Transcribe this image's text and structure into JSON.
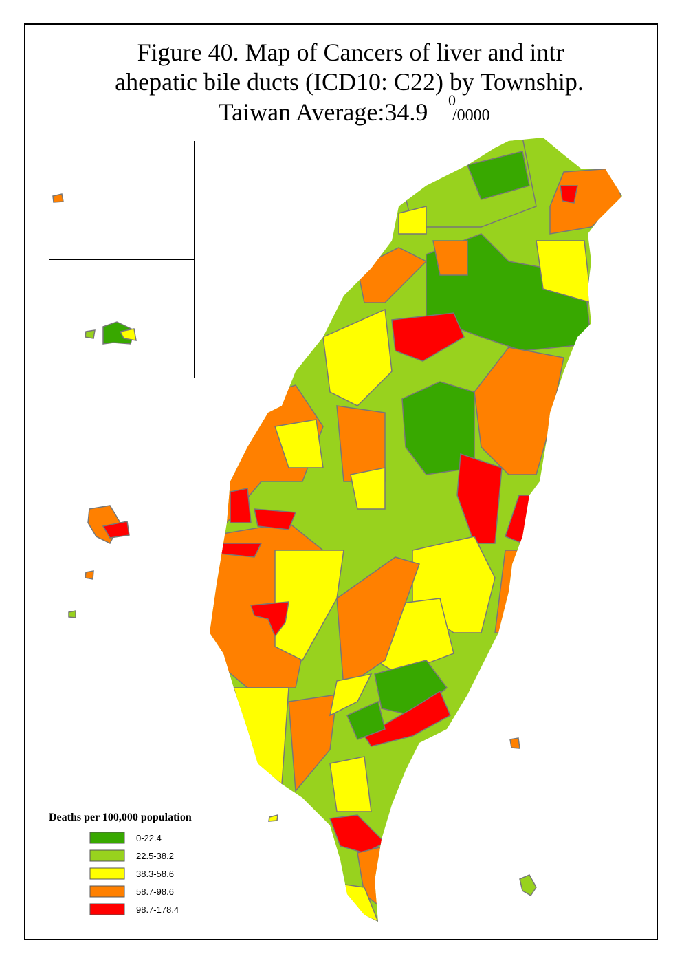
{
  "header": {
    "line1": "Figure 40. Map of Cancers of liver and intr",
    "line2": "ahepatic bile ducts (ICD10: C22) by Township.",
    "line3": "Taiwan Average:34.9",
    "superscript": "0",
    "unit": "/0000"
  },
  "legend": {
    "title": "Deaths per 100,000 population",
    "items": [
      {
        "label": "0-22.4",
        "color": "#38a800"
      },
      {
        "label": "22.5-38.2",
        "color": "#98d21e"
      },
      {
        "label": "38.3-58.6",
        "color": "#ffff00"
      },
      {
        "label": "58.7-98.6",
        "color": "#ff8000"
      },
      {
        "label": "98.7-178.4",
        "color": "#ff0000"
      }
    ]
  }
}
